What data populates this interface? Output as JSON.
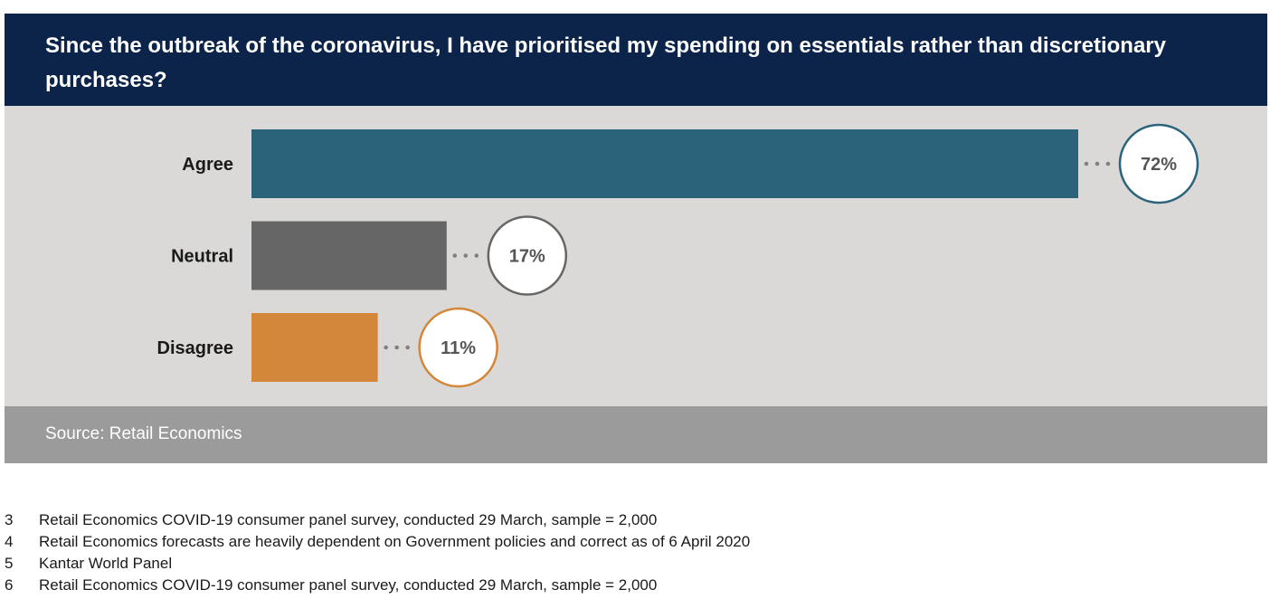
{
  "title": "Since the outbreak of the coronavirus, I have prioritised my spending on essentials rather than discretionary purchases?",
  "source": "Source: Retail Economics",
  "footnotes": [
    {
      "num": "3",
      "text": "Retail Economics COVID-19 consumer panel survey, conducted 29 March, sample = 2,000"
    },
    {
      "num": "4",
      "text": "Retail Economics forecasts are heavily dependent on Government policies and correct as of 6 April 2020"
    },
    {
      "num": "5",
      "text": "Kantar World Panel"
    },
    {
      "num": "6",
      "text": "Retail Economics COVID-19 consumer panel survey, conducted 29 March, sample = 2,000"
    }
  ],
  "chart_data": {
    "type": "bar",
    "orientation": "horizontal",
    "title": "Since the outbreak of the coronavirus, I have prioritised my spending on essentials rather than discretionary purchases?",
    "categories": [
      "Agree",
      "Neutral",
      "Disagree"
    ],
    "values": [
      72,
      17,
      11
    ],
    "value_labels": [
      "72%",
      "17%",
      "11%"
    ],
    "colors": [
      "#2a637a",
      "#666666",
      "#d2873a"
    ],
    "label_ring_colors": [
      "#2a637a",
      "#666666",
      "#d2873a"
    ],
    "xlim": [
      0,
      72
    ],
    "grid": false,
    "legend": "none"
  },
  "colors": {
    "title_bg": "#0c2449",
    "chart_bg": "#dad9d7",
    "source_bg": "#9b9b9b",
    "dots": "#808080"
  }
}
